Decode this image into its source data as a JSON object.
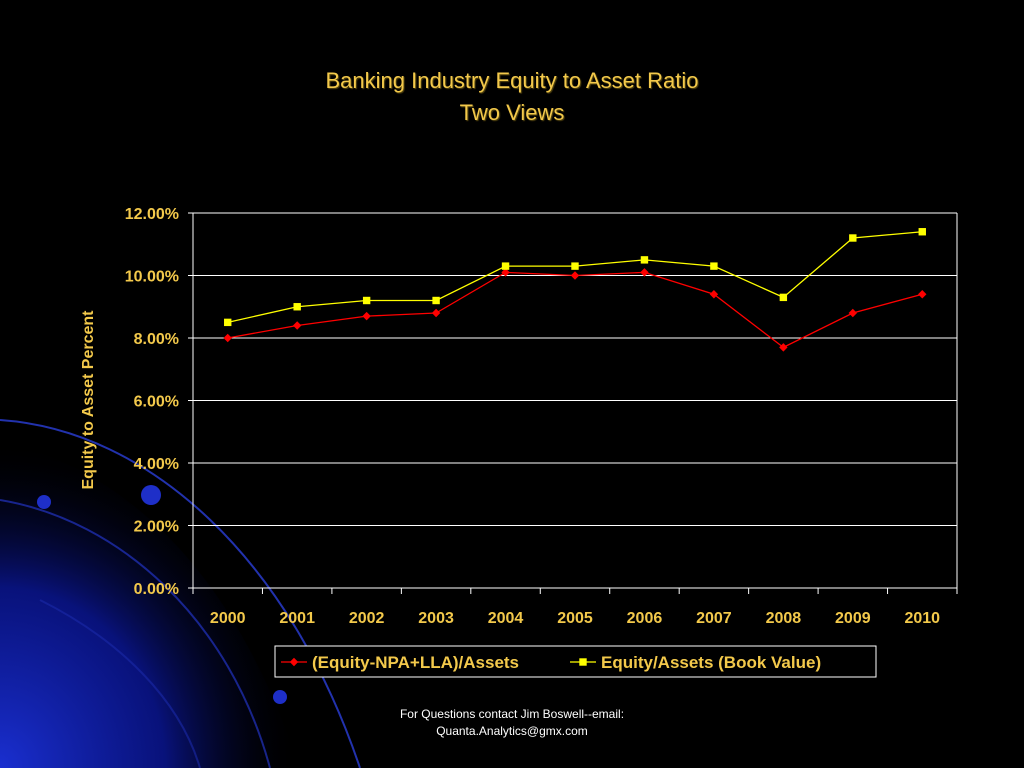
{
  "colors": {
    "background": "#000000",
    "text_gold": "#F3C94B",
    "gridline": "#FFFFFF",
    "series_1": "#FF0000",
    "series_2": "#FFFF00",
    "decor_blue": "#1a2fd0"
  },
  "title": {
    "line1": "Banking Industry Equity to Asset Ratio",
    "line2": "Two Views"
  },
  "footer": {
    "line1": "For Questions contact Jim Boswell--email:",
    "line2": "Quanta.Analytics@gmx.com"
  },
  "chart_data": {
    "type": "line",
    "title": "Banking Industry Equity to Asset Ratio Two Views",
    "xlabel": "",
    "ylabel": "Equity to Asset Percent",
    "categories": [
      "2000",
      "2001",
      "2002",
      "2003",
      "2004",
      "2005",
      "2006",
      "2007",
      "2008",
      "2009",
      "2010"
    ],
    "y_ticks": [
      "0.00%",
      "2.00%",
      "4.00%",
      "6.00%",
      "8.00%",
      "10.00%",
      "12.00%"
    ],
    "ylim": [
      0,
      0.12
    ],
    "grid": true,
    "legend_position": "bottom",
    "series": [
      {
        "name": "(Equity-NPA+LLA)/Assets",
        "color": "#FF0000",
        "marker": "diamond",
        "values": [
          0.08,
          0.084,
          0.087,
          0.088,
          0.101,
          0.1,
          0.101,
          0.094,
          0.077,
          0.088,
          0.094
        ]
      },
      {
        "name": "Equity/Assets (Book Value)",
        "color": "#FFFF00",
        "marker": "square",
        "values": [
          0.085,
          0.09,
          0.092,
          0.092,
          0.103,
          0.103,
          0.105,
          0.103,
          0.093,
          0.112,
          0.114
        ]
      }
    ]
  }
}
